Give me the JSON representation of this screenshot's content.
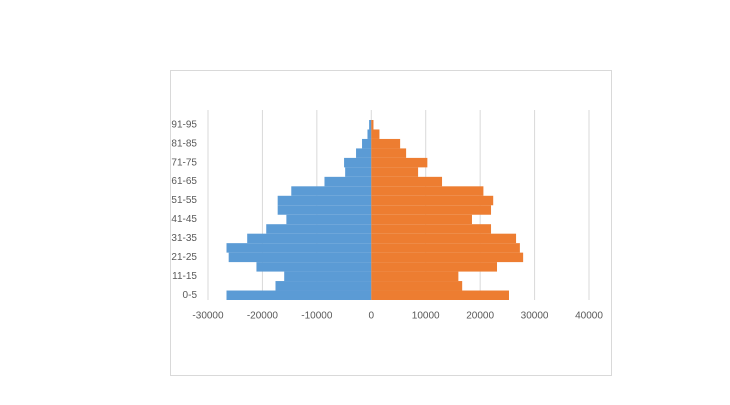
{
  "chart_data": {
    "type": "bar",
    "orientation": "horizontal",
    "stacked": true,
    "categories": [
      "0-5",
      null,
      "11-15",
      null,
      "21-25",
      null,
      "31-35",
      null,
      "41-45",
      null,
      "51-55",
      null,
      "61-65",
      null,
      "71-75",
      null,
      "81-85",
      null,
      "91-95"
    ],
    "series": [
      {
        "color": "#5b9bd5",
        "values": [
          -26600,
          -17600,
          -16000,
          -21100,
          -26200,
          -26600,
          -22800,
          -19300,
          -15600,
          -17200,
          -17200,
          -14700,
          -8600,
          -4800,
          -5000,
          -2800,
          -1700,
          -700,
          -400
        ]
      },
      {
        "color": "#ed7d31",
        "values": [
          25300,
          16700,
          16000,
          23100,
          27900,
          27300,
          26600,
          22000,
          18500,
          22000,
          22400,
          20600,
          13000,
          8600,
          10300,
          6400,
          5300,
          1500,
          400
        ]
      }
    ],
    "xlim": [
      -30000,
      40000
    ],
    "xticks": [
      -30000,
      -20000,
      -10000,
      0,
      10000,
      20000,
      30000,
      40000
    ],
    "grid": true
  }
}
